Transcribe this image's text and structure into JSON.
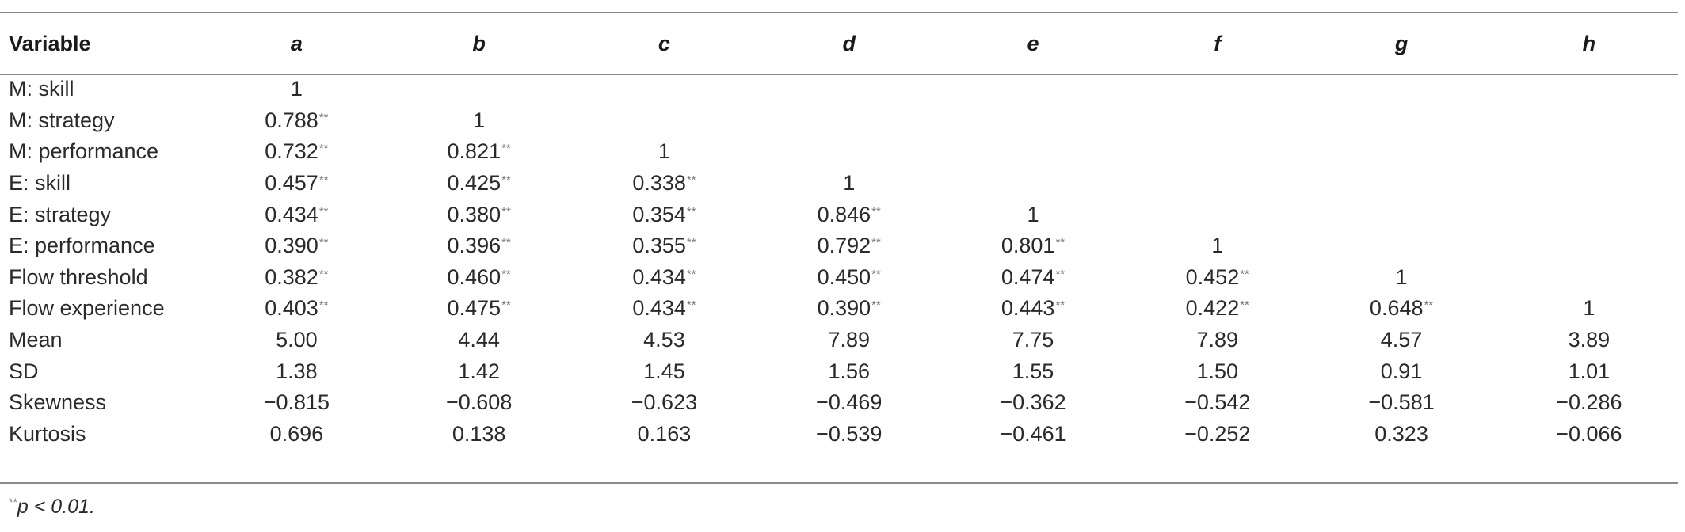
{
  "table": {
    "header": {
      "variable_label": "Variable",
      "columns": [
        "a",
        "b",
        "c",
        "d",
        "e",
        "f",
        "g",
        "h"
      ]
    },
    "rows": [
      {
        "label": "M: skill",
        "cells": [
          {
            "v": "1",
            "s": ""
          },
          null,
          null,
          null,
          null,
          null,
          null,
          null
        ]
      },
      {
        "label": "M: strategy",
        "cells": [
          {
            "v": "0.788",
            "s": "**"
          },
          {
            "v": "1",
            "s": ""
          },
          null,
          null,
          null,
          null,
          null,
          null
        ]
      },
      {
        "label": "M: performance",
        "cells": [
          {
            "v": "0.732",
            "s": "**"
          },
          {
            "v": "0.821",
            "s": "**"
          },
          {
            "v": "1",
            "s": ""
          },
          null,
          null,
          null,
          null,
          null
        ]
      },
      {
        "label": "E: skill",
        "cells": [
          {
            "v": "0.457",
            "s": "**"
          },
          {
            "v": "0.425",
            "s": "**"
          },
          {
            "v": "0.338",
            "s": "**"
          },
          {
            "v": "1",
            "s": ""
          },
          null,
          null,
          null,
          null
        ]
      },
      {
        "label": "E: strategy",
        "cells": [
          {
            "v": "0.434",
            "s": "**"
          },
          {
            "v": "0.380",
            "s": "**"
          },
          {
            "v": "0.354",
            "s": "**"
          },
          {
            "v": "0.846",
            "s": "**"
          },
          {
            "v": "1",
            "s": ""
          },
          null,
          null,
          null
        ]
      },
      {
        "label": "E: performance",
        "cells": [
          {
            "v": "0.390",
            "s": "**"
          },
          {
            "v": "0.396",
            "s": "**"
          },
          {
            "v": "0.355",
            "s": "**"
          },
          {
            "v": "0.792",
            "s": "**"
          },
          {
            "v": "0.801",
            "s": "**"
          },
          {
            "v": "1",
            "s": ""
          },
          null,
          null
        ]
      },
      {
        "label": "Flow threshold",
        "cells": [
          {
            "v": "0.382",
            "s": "**"
          },
          {
            "v": "0.460",
            "s": "**"
          },
          {
            "v": "0.434",
            "s": "**"
          },
          {
            "v": "0.450",
            "s": "**"
          },
          {
            "v": "0.474",
            "s": "**"
          },
          {
            "v": "0.452",
            "s": "**"
          },
          {
            "v": "1",
            "s": ""
          },
          null
        ]
      },
      {
        "label": "Flow experience",
        "cells": [
          {
            "v": "0.403",
            "s": "**"
          },
          {
            "v": "0.475",
            "s": "**"
          },
          {
            "v": "0.434",
            "s": "**"
          },
          {
            "v": "0.390",
            "s": "**"
          },
          {
            "v": "0.443",
            "s": "**"
          },
          {
            "v": "0.422",
            "s": "**"
          },
          {
            "v": "0.648",
            "s": "**"
          },
          {
            "v": "1",
            "s": ""
          }
        ]
      },
      {
        "label": "Mean",
        "cells": [
          {
            "v": "5.00",
            "s": ""
          },
          {
            "v": "4.44",
            "s": ""
          },
          {
            "v": "4.53",
            "s": ""
          },
          {
            "v": "7.89",
            "s": ""
          },
          {
            "v": "7.75",
            "s": ""
          },
          {
            "v": "7.89",
            "s": ""
          },
          {
            "v": "4.57",
            "s": ""
          },
          {
            "v": "3.89",
            "s": ""
          }
        ]
      },
      {
        "label": "SD",
        "cells": [
          {
            "v": "1.38",
            "s": ""
          },
          {
            "v": "1.42",
            "s": ""
          },
          {
            "v": "1.45",
            "s": ""
          },
          {
            "v": "1.56",
            "s": ""
          },
          {
            "v": "1.55",
            "s": ""
          },
          {
            "v": "1.50",
            "s": ""
          },
          {
            "v": "0.91",
            "s": ""
          },
          {
            "v": "1.01",
            "s": ""
          }
        ]
      },
      {
        "label": "Skewness",
        "cells": [
          {
            "v": "−0.815",
            "s": ""
          },
          {
            "v": "−0.608",
            "s": ""
          },
          {
            "v": "−0.623",
            "s": ""
          },
          {
            "v": "−0.469",
            "s": ""
          },
          {
            "v": "−0.362",
            "s": ""
          },
          {
            "v": "−0.542",
            "s": ""
          },
          {
            "v": "−0.581",
            "s": ""
          },
          {
            "v": "−0.286",
            "s": ""
          }
        ]
      },
      {
        "label": "Kurtosis",
        "cells": [
          {
            "v": "0.696",
            "s": ""
          },
          {
            "v": "0.138",
            "s": ""
          },
          {
            "v": "0.163",
            "s": ""
          },
          {
            "v": "−0.539",
            "s": ""
          },
          {
            "v": "−0.461",
            "s": ""
          },
          {
            "v": "−0.252",
            "s": ""
          },
          {
            "v": "0.323",
            "s": ""
          },
          {
            "v": "−0.066",
            "s": ""
          }
        ]
      }
    ]
  },
  "footnote": {
    "marker": "**",
    "text": "p < 0.01."
  }
}
